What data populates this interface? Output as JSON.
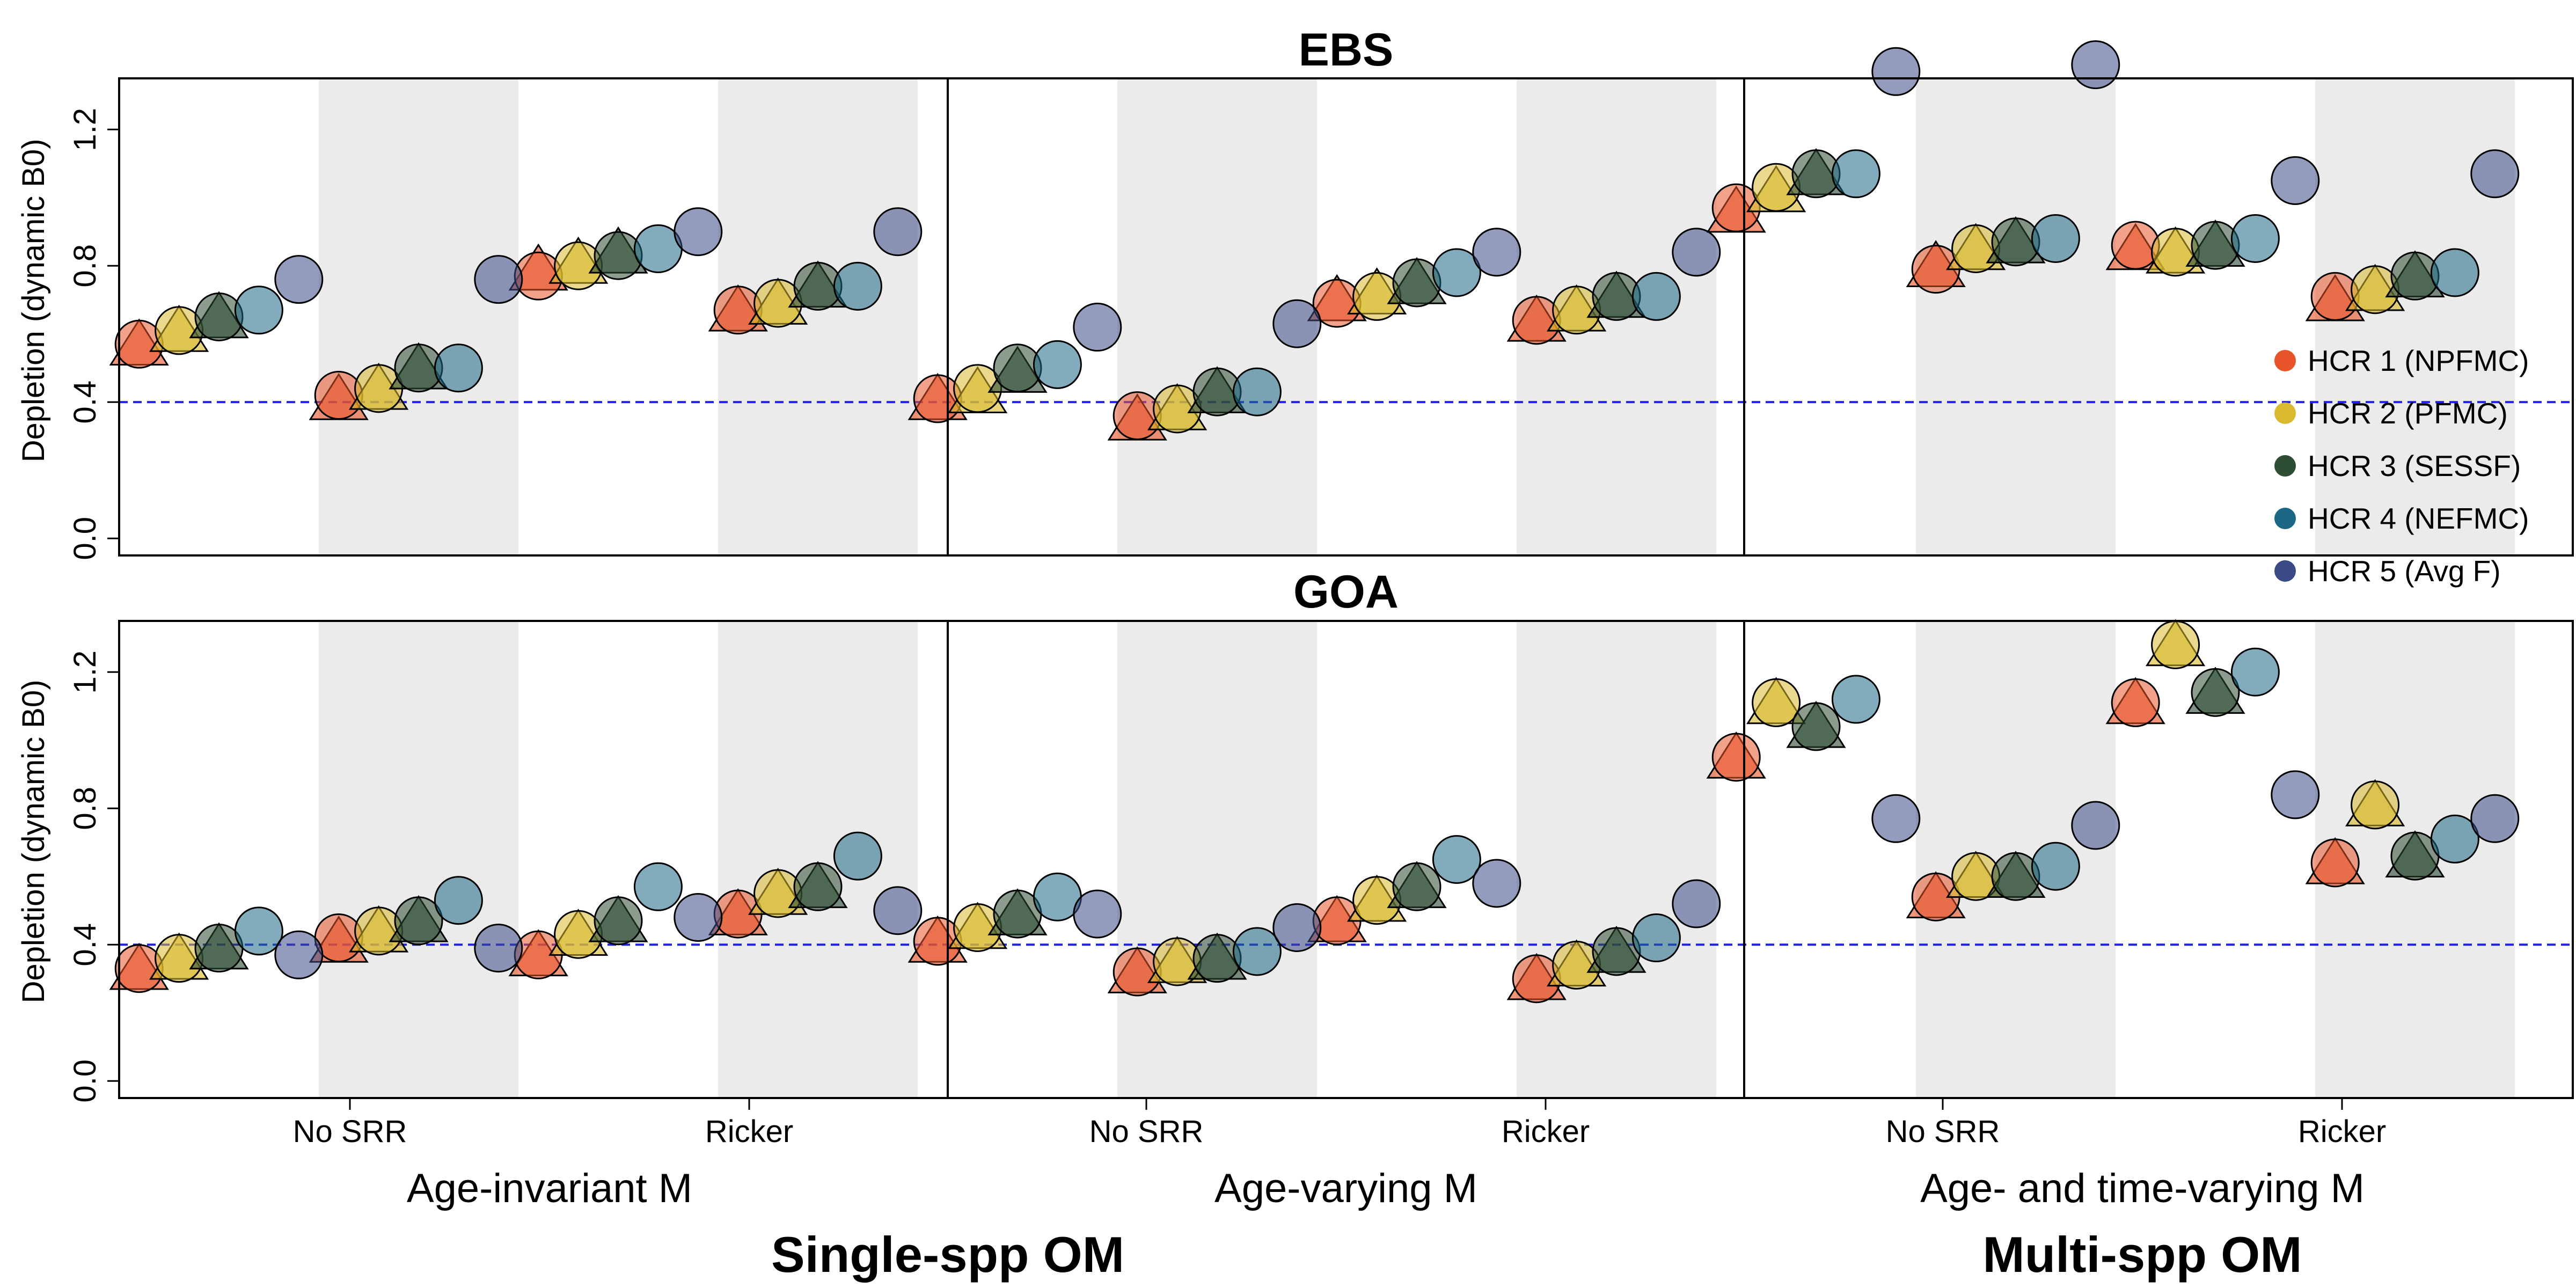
{
  "chart_data": [
    {
      "type": "scatter",
      "title": "EBS",
      "ylabel": "Depletion (dynamic B0)",
      "ylim": [
        -0.05,
        1.35
      ],
      "yticks": [
        "0.0",
        "0.4",
        "0.8",
        "1.2"
      ],
      "reference_line": 0.4,
      "legend": {
        "position": "right",
        "entries": [
          "HCR 1 (NPFMC)",
          "HCR 2 (PFMC)",
          "HCR 3 (SESSF)",
          "HCR 4 (NEFMC)",
          "HCR 5 (Avg F)"
        ],
        "colors": [
          "#e8542a",
          "#d9b92d",
          "#2e4d35",
          "#1b6784",
          "#3a4a85"
        ]
      },
      "series": [
        {
          "name": "HCR 1 (NPFMC)",
          "values": [
            0.56,
            0.57,
            0.4,
            0.42,
            0.78,
            0.77,
            0.66,
            0.67,
            0.4,
            0.41,
            0.34,
            0.36,
            0.69,
            0.69,
            0.63,
            0.64,
            0.95,
            0.97,
            0.79,
            0.79,
            0.84,
            0.86,
            0.69,
            0.71
          ]
        },
        {
          "name": "HCR 2 (PFMC)",
          "values": [
            0.6,
            0.61,
            0.43,
            0.44,
            0.8,
            0.8,
            0.68,
            0.69,
            0.42,
            0.44,
            0.37,
            0.38,
            0.71,
            0.71,
            0.66,
            0.67,
            1.01,
            1.03,
            0.84,
            0.85,
            0.83,
            0.84,
            0.72,
            0.73
          ]
        },
        {
          "name": "HCR 3 (SESSF)",
          "values": [
            0.64,
            0.65,
            0.49,
            0.5,
            0.83,
            0.83,
            0.73,
            0.74,
            0.48,
            0.5,
            0.42,
            0.43,
            0.74,
            0.75,
            0.7,
            0.71,
            1.06,
            1.07,
            0.86,
            0.87,
            0.85,
            0.86,
            0.76,
            0.77
          ]
        },
        {
          "name": "HCR 4 (NEFMC)",
          "values": [
            0.67,
            0.5,
            0.85,
            0.74,
            0.51,
            0.43,
            0.78,
            0.71,
            1.07,
            0.88,
            0.88,
            0.78
          ]
        },
        {
          "name": "HCR 5 (Avg F)",
          "values": [
            0.76,
            0.76,
            0.9,
            0.9,
            0.62,
            0.63,
            0.84,
            0.84,
            1.37,
            1.39,
            1.05,
            1.07
          ]
        }
      ]
    },
    {
      "type": "scatter",
      "title": "GOA",
      "ylabel": "Depletion (dynamic B0)",
      "ylim": [
        -0.05,
        1.35
      ],
      "yticks": [
        "0.0",
        "0.4",
        "0.8",
        "1.2"
      ],
      "reference_line": 0.4,
      "series": [
        {
          "name": "HCR 1 (NPFMC)",
          "values": [
            0.32,
            0.33,
            0.4,
            0.42,
            0.36,
            0.37,
            0.48,
            0.49,
            0.4,
            0.41,
            0.31,
            0.32,
            0.46,
            0.47,
            0.29,
            0.3,
            0.94,
            0.95,
            0.53,
            0.54,
            1.1,
            1.11,
            0.63,
            0.64
          ]
        },
        {
          "name": "HCR 2 (PFMC)",
          "values": [
            0.35,
            0.36,
            0.43,
            0.44,
            0.42,
            0.43,
            0.54,
            0.55,
            0.44,
            0.45,
            0.34,
            0.35,
            0.52,
            0.53,
            0.33,
            0.34,
            1.1,
            1.11,
            0.59,
            0.6,
            1.27,
            1.28,
            0.8,
            0.81
          ]
        },
        {
          "name": "HCR 3 (SESSF)",
          "values": [
            0.38,
            0.39,
            0.46,
            0.47,
            0.46,
            0.47,
            0.56,
            0.57,
            0.48,
            0.49,
            0.35,
            0.36,
            0.56,
            0.57,
            0.37,
            0.38,
            1.03,
            1.04,
            0.59,
            0.6,
            1.13,
            1.14,
            0.65,
            0.66
          ]
        },
        {
          "name": "HCR 4 (NEFMC)",
          "values": [
            0.44,
            0.53,
            0.57,
            0.66,
            0.54,
            0.38,
            0.65,
            0.42,
            1.12,
            0.63,
            1.2,
            0.71
          ]
        },
        {
          "name": "HCR 5 (Avg F)",
          "values": [
            0.37,
            0.39,
            0.48,
            0.5,
            0.49,
            0.45,
            0.58,
            0.52,
            0.77,
            0.75,
            0.84,
            0.77
          ]
        }
      ]
    }
  ],
  "x_axis": {
    "srr_labels": [
      "No SRR",
      "Ricker",
      "No SRR",
      "Ricker",
      "No SRR",
      "Ricker"
    ],
    "m_groups": [
      "Age-invariant M",
      "Age-varying M",
      "Age- and time-varying M"
    ],
    "om_groups": [
      "Single-spp OM",
      "Multi-spp OM"
    ]
  }
}
